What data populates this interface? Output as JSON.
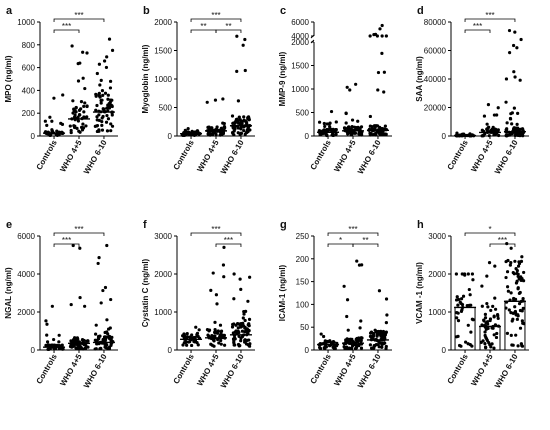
{
  "chart_data": [
    {
      "type": "scatter",
      "panel_label": "a",
      "title": "",
      "ylabel": "MPO (ng/ml)",
      "categories": [
        "Controls",
        "WHO 4+5",
        "WHO 6-10"
      ],
      "ylim": [
        0,
        1000
      ],
      "yticks": [
        0,
        200,
        400,
        600,
        800,
        1000
      ],
      "ytick_labels": [
        "0",
        "200",
        "400",
        "600",
        "800",
        "1000"
      ],
      "bar": false,
      "medians": [
        25,
        150,
        210
      ],
      "ranges": [
        [
          5,
          360
        ],
        [
          30,
          790
        ],
        [
          40,
          850
        ]
      ],
      "counts": [
        40,
        55,
        75
      ],
      "comparisons": [
        {
          "from": 0,
          "to": 2,
          "label": "***",
          "level": 2
        },
        {
          "from": 0,
          "to": 1,
          "label": "***",
          "level": 1
        }
      ]
    },
    {
      "type": "scatter",
      "panel_label": "b",
      "title": "",
      "ylabel": "Myoglobin (ng/ml)",
      "categories": [
        "Controls",
        "WHO 4+5",
        "WHO 6-10"
      ],
      "ylim": [
        0,
        2000
      ],
      "yticks": [
        0,
        500,
        1000,
        1500,
        2000
      ],
      "ytick_labels": [
        "0",
        "500",
        "1000",
        "1500",
        "2000"
      ],
      "bar": false,
      "medians": [
        40,
        90,
        180
      ],
      "ranges": [
        [
          10,
          130
        ],
        [
          15,
          650
        ],
        [
          20,
          1750
        ]
      ],
      "counts": [
        40,
        55,
        75
      ],
      "comparisons": [
        {
          "from": 0,
          "to": 2,
          "label": "***",
          "level": 2
        },
        {
          "from": 0,
          "to": 1,
          "label": "**",
          "level": 1
        },
        {
          "from": 1,
          "to": 2,
          "label": "**",
          "level": 1
        }
      ]
    },
    {
      "type": "scatter",
      "panel_label": "c",
      "title": "",
      "ylabel": "MMP-9 (ng/ml)",
      "categories": [
        "Controls",
        "WHO 4+5",
        "WHO 6-10"
      ],
      "ylim": [
        0,
        6000
      ],
      "broken_axis": {
        "lower": [
          0,
          2000
        ],
        "upper": [
          4000,
          6000
        ]
      },
      "yticks": [
        0,
        500,
        1000,
        1500,
        2000,
        4000,
        6000
      ],
      "ytick_labels": [
        "0",
        "500",
        "1000",
        "1500",
        "2000",
        "4000",
        "6000"
      ],
      "bar": false,
      "medians": [
        80,
        110,
        120
      ],
      "ranges": [
        [
          10,
          520
        ],
        [
          20,
          1100
        ],
        [
          20,
          5500
        ]
      ],
      "counts": [
        40,
        55,
        75
      ],
      "comparisons": []
    },
    {
      "type": "scatter",
      "panel_label": "d",
      "title": "",
      "ylabel": "SAA (ng/ml)",
      "categories": [
        "Controls",
        "WHO 4+5",
        "WHO 6-10"
      ],
      "ylim": [
        0,
        80000
      ],
      "yticks": [
        0,
        20000,
        40000,
        60000,
        80000
      ],
      "ytick_labels": [
        "0",
        "20000",
        "40000",
        "60000",
        "80000"
      ],
      "bar": false,
      "medians": [
        300,
        2500,
        3000
      ],
      "ranges": [
        [
          50,
          2000
        ],
        [
          100,
          22000
        ],
        [
          100,
          74000
        ]
      ],
      "counts": [
        40,
        55,
        75
      ],
      "comparisons": [
        {
          "from": 0,
          "to": 2,
          "label": "***",
          "level": 2
        },
        {
          "from": 0,
          "to": 1,
          "label": "***",
          "level": 1
        }
      ]
    },
    {
      "type": "scatter",
      "panel_label": "e",
      "title": "",
      "ylabel": "NGAL (ng/ml)",
      "categories": [
        "Controls",
        "WHO 4+5",
        "WHO 6-10"
      ],
      "ylim": [
        0,
        6000
      ],
      "yticks": [
        0,
        2000,
        4000,
        6000
      ],
      "ytick_labels": [
        "0",
        "2000",
        "4000",
        "6000"
      ],
      "bar": false,
      "medians": [
        150,
        350,
        400
      ],
      "ranges": [
        [
          30,
          2300
        ],
        [
          50,
          5500
        ],
        [
          50,
          5500
        ]
      ],
      "counts": [
        40,
        55,
        75
      ],
      "comparisons": [
        {
          "from": 0,
          "to": 2,
          "label": "***",
          "level": 2
        },
        {
          "from": 0,
          "to": 1,
          "label": "***",
          "level": 1
        }
      ]
    },
    {
      "type": "scatter",
      "panel_label": "f",
      "title": "",
      "ylabel": "Cystatin C (ng/ml)",
      "categories": [
        "Controls",
        "WHO 4+5",
        "WHO 6-10"
      ],
      "ylim": [
        0,
        3000
      ],
      "yticks": [
        0,
        1000,
        2000,
        3000
      ],
      "ytick_labels": [
        "0",
        "1000",
        "2000",
        "3000"
      ],
      "bar": false,
      "medians": [
        280,
        320,
        400
      ],
      "ranges": [
        [
          120,
          600
        ],
        [
          100,
          2700
        ],
        [
          100,
          2000
        ]
      ],
      "counts": [
        40,
        55,
        75
      ],
      "comparisons": [
        {
          "from": 0,
          "to": 2,
          "label": "***",
          "level": 2
        },
        {
          "from": 1,
          "to": 2,
          "label": "***",
          "level": 1
        }
      ]
    },
    {
      "type": "scatter",
      "panel_label": "g",
      "title": "",
      "ylabel": "ICAM-1 (ng/ml)",
      "categories": [
        "Controls",
        "WHO 4+5",
        "WHO 6-10"
      ],
      "ylim": [
        0,
        250
      ],
      "yticks": [
        0,
        50,
        100,
        150,
        200,
        250
      ],
      "ytick_labels": [
        "0",
        "50",
        "100",
        "150",
        "200",
        "250"
      ],
      "bar": false,
      "medians": [
        12,
        15,
        22
      ],
      "ranges": [
        [
          3,
          35
        ],
        [
          3,
          195
        ],
        [
          3,
          130
        ]
      ],
      "counts": [
        40,
        55,
        75
      ],
      "comparisons": [
        {
          "from": 0,
          "to": 2,
          "label": "***",
          "level": 2
        },
        {
          "from": 0,
          "to": 1,
          "label": "*",
          "level": 1
        },
        {
          "from": 1,
          "to": 2,
          "label": "**",
          "level": 1
        }
      ]
    },
    {
      "type": "bar",
      "panel_label": "h",
      "title": "",
      "ylabel": "VCAM -1 (ng/ml)",
      "categories": [
        "Controls",
        "WHO 4+5",
        "WHO 6-10"
      ],
      "ylim": [
        0,
        3000
      ],
      "yticks": [
        0,
        1000,
        2000,
        3000
      ],
      "ytick_labels": [
        "0",
        "1000",
        "2000",
        "3000"
      ],
      "bar": true,
      "values": [
        1120,
        620,
        1280
      ],
      "medians": [
        1120,
        620,
        1280
      ],
      "ranges": [
        [
          100,
          2000
        ],
        [
          50,
          2300
        ],
        [
          100,
          2800
        ]
      ],
      "counts": [
        40,
        55,
        75
      ],
      "comparisons": [
        {
          "from": 0,
          "to": 2,
          "label": "*",
          "level": 2
        },
        {
          "from": 1,
          "to": 2,
          "label": "***",
          "level": 1
        }
      ]
    }
  ]
}
